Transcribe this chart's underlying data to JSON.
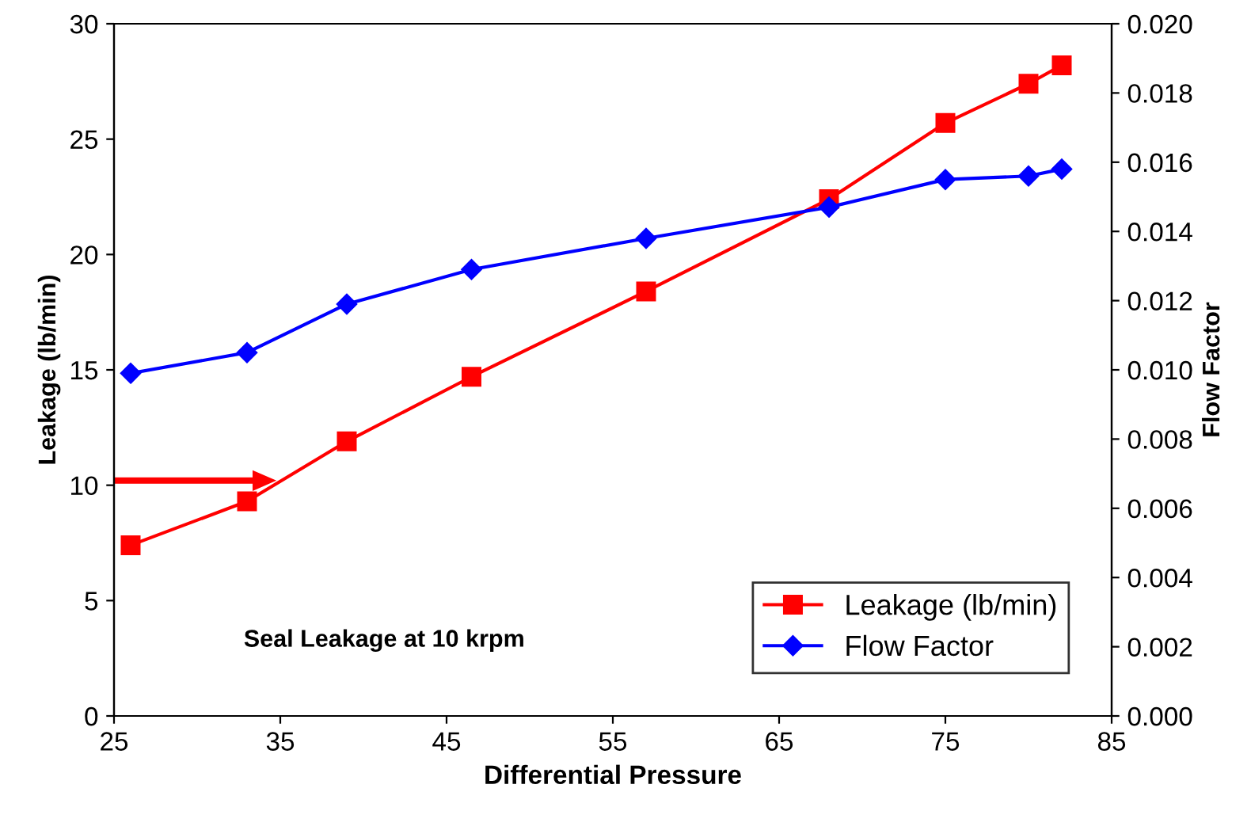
{
  "chart_data": {
    "type": "line",
    "xlabel": "Differential Pressure",
    "ylabel": "Leakage (lb/min)",
    "y2label": "Flow Factor",
    "annotations": [
      "Seal Leakage at 10 krpm"
    ],
    "x": [
      26,
      33,
      39,
      46.5,
      57,
      68,
      75,
      80,
      82
    ],
    "series": [
      {
        "name": "Leakage (lb/min)",
        "color": "#ff0000",
        "marker": "square",
        "values": [
          7.4,
          9.3,
          11.9,
          14.7,
          18.4,
          22.4,
          25.7,
          27.4,
          28.2
        ]
      },
      {
        "name": "Flow Factor",
        "color": "#0000ff",
        "marker": "diamond",
        "axis": "y2",
        "values": [
          0.0099,
          0.0105,
          0.0119,
          0.0129,
          0.0138,
          0.0147,
          0.0155,
          0.0156,
          0.0158
        ]
      }
    ],
    "xlim": [
      25,
      85
    ],
    "xticks": [
      25,
      35,
      45,
      55,
      65,
      75,
      85
    ],
    "ylim": [
      0,
      30
    ],
    "yticks": [
      0,
      5,
      10,
      15,
      20,
      25,
      30
    ],
    "y2lim": [
      0,
      0.02
    ],
    "y2ticks": [
      {
        "value": 0,
        "label": "0.000"
      },
      {
        "value": 0.002,
        "label": "0.002"
      },
      {
        "value": 0.004,
        "label": "0.004"
      },
      {
        "value": 0.006,
        "label": "0.006"
      },
      {
        "value": 0.008,
        "label": "0.008"
      },
      {
        "value": 0.01,
        "label": "0.010"
      },
      {
        "value": 0.012,
        "label": "0.012"
      },
      {
        "value": 0.014,
        "label": "0.014"
      },
      {
        "value": 0.016,
        "label": "0.016"
      },
      {
        "value": 0.018,
        "label": "0.018"
      },
      {
        "value": 0.02,
        "label": "0.020"
      }
    ],
    "grid": false,
    "legend": "bottom right",
    "line_style": "solid"
  }
}
